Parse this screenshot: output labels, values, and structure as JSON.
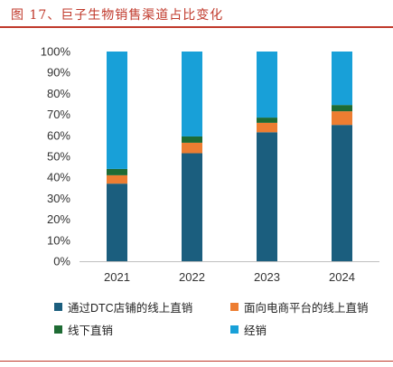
{
  "figure": {
    "title": "图 17、巨子生物销售渠道占比变化",
    "title_color": "#c0392b",
    "rule_color": "#c0392b"
  },
  "chart_data": {
    "type": "bar",
    "stacked": true,
    "percent": true,
    "categories": [
      "2021",
      "2022",
      "2023",
      "2024"
    ],
    "series": [
      {
        "name": "通过DTC店铺的线上直销",
        "color": "#1b5e7e",
        "values": [
          37,
          51.5,
          61.5,
          65
        ]
      },
      {
        "name": "面向电商平台的线上直销",
        "color": "#ed7d31",
        "values": [
          4,
          5,
          4.5,
          6.5
        ]
      },
      {
        "name": "线下直销",
        "color": "#1e6b34",
        "values": [
          3,
          3,
          2.5,
          3
        ]
      },
      {
        "name": "经销",
        "color": "#18a0d8",
        "values": [
          56,
          40.5,
          31.5,
          25.5
        ]
      }
    ],
    "ylim": [
      0,
      100
    ],
    "yticks": [
      "0%",
      "10%",
      "20%",
      "30%",
      "40%",
      "50%",
      "60%",
      "70%",
      "80%",
      "90%",
      "100%"
    ],
    "grid": false,
    "legend_position": "bottom"
  }
}
